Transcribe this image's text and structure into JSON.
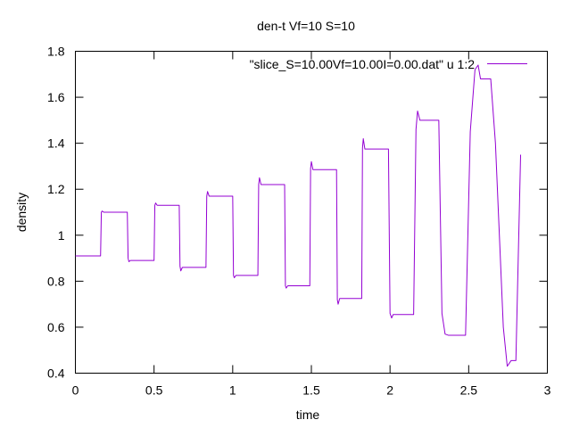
{
  "chart_data": {
    "type": "line",
    "title": "den-t Vf=10 S=10",
    "xlabel": "time",
    "ylabel": "density",
    "xlim": [
      0,
      3
    ],
    "ylim": [
      0.4,
      1.8
    ],
    "xticks": [
      "0",
      "0.5",
      "1",
      "1.5",
      "2",
      "2.5",
      "3"
    ],
    "yticks": [
      "0.4",
      "0.6",
      "0.8",
      "1",
      "1.2",
      "1.4",
      "1.6",
      "1.8"
    ],
    "grid": false,
    "legend_position": "top-right",
    "series": [
      {
        "name": "\"slice_S=10.00Vf=10.00I=0.00.dat\" u 1:2",
        "color": "#9400d3",
        "x": [
          0,
          0.16,
          0.165,
          0.17,
          0.18,
          0.33,
          0.335,
          0.34,
          0.35,
          0.5,
          0.505,
          0.51,
          0.52,
          0.66,
          0.665,
          0.67,
          0.68,
          0.83,
          0.835,
          0.84,
          0.85,
          1,
          1.005,
          1.01,
          1.02,
          1.16,
          1.165,
          1.17,
          1.18,
          1.33,
          1.335,
          1.34,
          1.35,
          1.49,
          1.495,
          1.5,
          1.51,
          1.66,
          1.665,
          1.67,
          1.68,
          1.82,
          1.825,
          1.83,
          1.84,
          1.99,
          2.0,
          2.01,
          2.02,
          2.15,
          2.165,
          2.175,
          2.19,
          2.31,
          2.33,
          2.35,
          2.37,
          2.48,
          2.51,
          2.54,
          2.56,
          2.575,
          2.64,
          2.67,
          2.72,
          2.745,
          2.77,
          2.8,
          2.83
        ],
        "y": [
          0.91,
          0.91,
          1.1,
          1.105,
          1.1,
          1.1,
          0.9,
          0.885,
          0.89,
          0.89,
          1.13,
          1.14,
          1.13,
          1.13,
          0.865,
          0.845,
          0.86,
          0.86,
          1.17,
          1.19,
          1.17,
          1.17,
          0.825,
          0.815,
          0.825,
          0.825,
          1.22,
          1.25,
          1.22,
          1.22,
          0.78,
          0.77,
          0.78,
          0.78,
          1.29,
          1.32,
          1.285,
          1.285,
          0.72,
          0.7,
          0.725,
          0.725,
          1.38,
          1.42,
          1.375,
          1.375,
          0.66,
          0.64,
          0.655,
          0.655,
          1.46,
          1.54,
          1.5,
          1.5,
          0.66,
          0.57,
          0.565,
          0.565,
          1.45,
          1.72,
          1.74,
          1.68,
          1.68,
          1.4,
          0.6,
          0.43,
          0.455,
          0.455,
          1.35
        ]
      }
    ]
  }
}
